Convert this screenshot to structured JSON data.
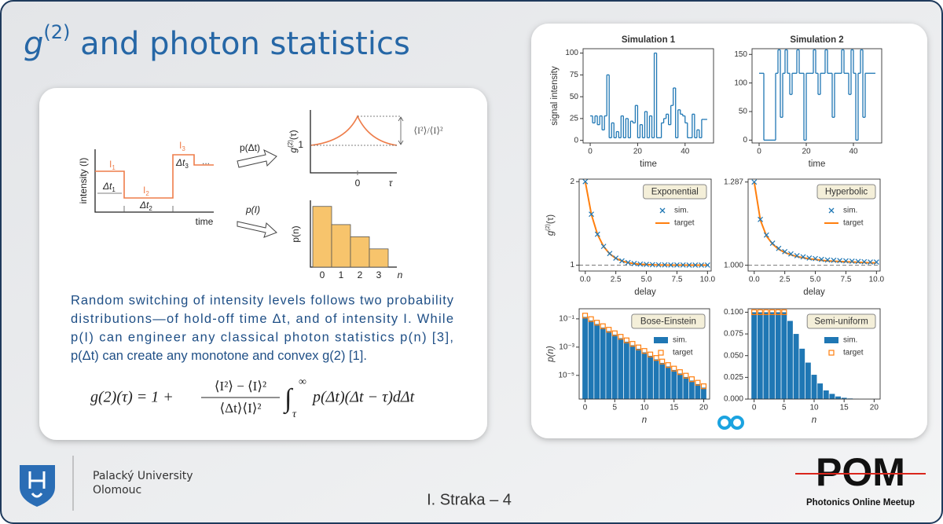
{
  "title": {
    "base": "g",
    "sup": "(2)",
    "rest": " and photon statistics"
  },
  "diagram": {
    "intensity_axis": "intensity (I)",
    "time_axis": "time",
    "levels": [
      {
        "base": "I",
        "sub": "1"
      },
      {
        "base": "I",
        "sub": "2"
      },
      {
        "base": "I",
        "sub": "3"
      }
    ],
    "holdoffs": [
      {
        "base": "Δt",
        "sub": "1"
      },
      {
        "base": "Δt",
        "sub": "2"
      },
      {
        "base": "Δt",
        "sub": "3"
      }
    ],
    "ellipsis": "...",
    "arrow_top": "p(Δt)",
    "arrow_bottom": "p(I)",
    "g2_axis": {
      "base": "g",
      "sup": "(2)",
      "rest": "(τ)"
    },
    "g2_one": "1",
    "g2_zero": "0",
    "g2_tau": "τ",
    "g2_ratio": "⟨I²⟩/⟨I⟩²",
    "pn": {
      "ylabel": "p(n)",
      "categories": [
        "0",
        "1",
        "2",
        "3"
      ],
      "values": [
        1,
        0.7,
        0.5,
        0.3
      ],
      "ylim": [
        0,
        1.1
      ],
      "xlabel": "n"
    }
  },
  "text": {
    "lines": [
      "Random switching of intensity levels follows two probability",
      "distributions—of hold-off time Δt, and of intensity I. While",
      "p(I) can engineer any classical photon statistics p(n) [3],",
      "p(Δt) can create any monotone and convex g(2) [1]."
    ]
  },
  "formula": {
    "lhs": "g(2)(τ) = 1 +",
    "numerator": "⟨I²⟩ − ⟨I⟩²",
    "denominator": "⟨Δt⟩⟨I⟩²",
    "integral": "∫",
    "lower": "τ",
    "upper": "∞",
    "integrand": "p(Δt)(Δt − τ)dΔt"
  },
  "footer": {
    "university": "Palacký University",
    "city": "Olomouc",
    "author": "I. Straka – 4",
    "logo": "POM",
    "logo_sub": "Photonics Online Meetup"
  },
  "chart_data": [
    {
      "type": "line",
      "title": "Simulation 1",
      "ylabel": "signal intensity",
      "xlabel": "time",
      "step": true,
      "xlim": [
        -3,
        52
      ],
      "xticks": [
        0,
        20,
        40
      ],
      "ylim": [
        -3,
        105
      ],
      "yticks": [
        0,
        25,
        50,
        75,
        100
      ],
      "x": [
        0,
        1,
        2,
        3,
        4,
        5,
        6,
        7,
        8,
        9,
        10,
        11,
        12,
        13,
        14,
        15,
        16,
        17,
        18,
        19,
        20,
        21,
        22,
        23,
        24,
        25,
        26,
        27,
        28,
        29,
        30,
        31,
        32,
        33,
        34,
        35,
        36,
        37,
        38,
        39,
        40,
        41,
        42,
        43,
        44,
        45,
        46,
        47,
        48,
        49
      ],
      "series": [
        {
          "name": "signal",
          "color": "#1f77b4",
          "style": "step",
          "values": [
            28,
            20,
            28,
            18,
            28,
            12,
            28,
            75,
            3,
            20,
            3,
            10,
            3,
            28,
            3,
            25,
            3,
            22,
            20,
            40,
            3,
            18,
            3,
            33,
            3,
            28,
            3,
            100,
            3,
            3,
            20,
            25,
            30,
            18,
            40,
            60,
            3,
            35,
            30,
            28,
            20,
            3,
            3,
            30,
            3,
            12,
            3,
            24,
            24,
            24
          ]
        }
      ]
    },
    {
      "type": "line",
      "title": "Simulation 2",
      "xlabel": "time",
      "step": true,
      "xlim": [
        -3,
        52
      ],
      "xticks": [
        0,
        20,
        40
      ],
      "ylim": [
        -5,
        160
      ],
      "yticks": [
        0,
        50,
        100,
        150
      ],
      "x": [
        0,
        1,
        2,
        3,
        4,
        5,
        6,
        7,
        8,
        9,
        10,
        11,
        12,
        13,
        14,
        15,
        16,
        17,
        18,
        19,
        20,
        21,
        22,
        23,
        24,
        25,
        26,
        27,
        28,
        29,
        30,
        31,
        32,
        33,
        34,
        35,
        36,
        37,
        38,
        39,
        40,
        41,
        42,
        43,
        44,
        45,
        46,
        47,
        48,
        49
      ],
      "series": [
        {
          "name": "signal",
          "color": "#1f77b4",
          "style": "step",
          "values": [
            117,
            117,
            0,
            0,
            0,
            0,
            0,
            117,
            158,
            40,
            117,
            158,
            117,
            80,
            117,
            117,
            158,
            117,
            117,
            0,
            117,
            117,
            117,
            158,
            117,
            80,
            117,
            117,
            158,
            117,
            117,
            40,
            117,
            117,
            117,
            158,
            117,
            117,
            80,
            158,
            117,
            0,
            117,
            158,
            40,
            117,
            117,
            117,
            117,
            117
          ]
        }
      ]
    },
    {
      "type": "line",
      "annotation": "Exponential",
      "ylabel": {
        "base": "g",
        "sup": "(2)",
        "rest": "(τ)"
      },
      "xlabel": "delay",
      "legend": true,
      "baseline": 1,
      "xlim": [
        -0.5,
        10.3
      ],
      "xticks": [
        {
          "value": 0,
          "label": "0.0"
        },
        {
          "value": 2.5,
          "label": "2.5"
        },
        {
          "value": 5,
          "label": "5.0"
        },
        {
          "value": 7.5,
          "label": "7.5"
        },
        {
          "value": 10,
          "label": "10.0"
        }
      ],
      "ylim": [
        0.93,
        2.03
      ],
      "yticks": [
        1,
        2
      ],
      "x": [
        0,
        0.5,
        1,
        1.5,
        2,
        2.5,
        3,
        3.5,
        4,
        4.5,
        5,
        5.5,
        6,
        6.5,
        7,
        7.5,
        8,
        8.5,
        9,
        9.5,
        10
      ],
      "series": [
        {
          "name": "target",
          "color": "#ff7f0e",
          "style": "line",
          "values": [
            2,
            1.607,
            1.368,
            1.223,
            1.135,
            1.082,
            1.05,
            1.03,
            1.018,
            1.011,
            1.007,
            1.004,
            1.002,
            1.002,
            1.001,
            1.001,
            1,
            1,
            1,
            1,
            1
          ]
        },
        {
          "name": "sim.",
          "color": "#1f77b4",
          "style": "x",
          "values": [
            2,
            1.61,
            1.37,
            1.225,
            1.14,
            1.085,
            1.052,
            1.032,
            1.02,
            1.013,
            1.009,
            1.006,
            1.004,
            1.003,
            1.002,
            1.002,
            1.002,
            1.001,
            1.001,
            1.001,
            1.001
          ]
        }
      ]
    },
    {
      "type": "line",
      "annotation": "Hyperbolic",
      "xlabel": "delay",
      "legend": true,
      "baseline": 1,
      "xlim": [
        -0.5,
        10.3
      ],
      "xticks": [
        {
          "value": 0,
          "label": "0.0"
        },
        {
          "value": 2.5,
          "label": "2.5"
        },
        {
          "value": 5,
          "label": "5.0"
        },
        {
          "value": 7.5,
          "label": "7.5"
        },
        {
          "value": 10,
          "label": "10.0"
        }
      ],
      "ylim": [
        0.98,
        1.297
      ],
      "yticks": [
        {
          "value": 1,
          "label": "1.000"
        },
        1.287
      ],
      "x": [
        0,
        0.5,
        1,
        1.5,
        2,
        2.5,
        3,
        3.5,
        4,
        4.5,
        5,
        5.5,
        6,
        6.5,
        7,
        7.5,
        8,
        8.5,
        9,
        9.5,
        10
      ],
      "series": [
        {
          "name": "target",
          "color": "#ff7f0e",
          "style": "line",
          "values": [
            1.287,
            1.156,
            1.101,
            1.073,
            1.055,
            1.044,
            1.036,
            1.03,
            1.026,
            1.022,
            1.02,
            1.017,
            1.015,
            1.014,
            1.013,
            1.012,
            1.011,
            1.01,
            1.009,
            1.008,
            1.008
          ]
        },
        {
          "name": "sim.",
          "color": "#1f77b4",
          "style": "x",
          "values": [
            1.287,
            1.158,
            1.104,
            1.076,
            1.058,
            1.047,
            1.039,
            1.033,
            1.029,
            1.025,
            1.023,
            1.02,
            1.018,
            1.017,
            1.016,
            1.015,
            1.014,
            1.013,
            1.012,
            1.011,
            1.011
          ]
        }
      ]
    },
    {
      "type": "bar",
      "annotation": "Bose-Einstein",
      "ylabel": "p(n)",
      "xlabel": "n",
      "xlabel_style": "italic",
      "legend": true,
      "log_y": true,
      "xlim": [
        -1,
        21
      ],
      "xticks": [
        0,
        5,
        10,
        15,
        20
      ],
      "ylim": [
        2.1e-07,
        0.52
      ],
      "yticks": [
        {
          "value": 0.1,
          "label": "10⁻¹"
        },
        {
          "value": 0.001,
          "label": "10⁻³"
        },
        {
          "value": 1e-05,
          "label": "10⁻⁵"
        }
      ],
      "x": [
        0,
        1,
        2,
        3,
        4,
        5,
        6,
        7,
        8,
        9,
        10,
        11,
        12,
        13,
        14,
        15,
        16,
        17,
        18,
        19,
        20
      ],
      "series": [
        {
          "name": "sim.",
          "color": "#1f77b4",
          "style": "bar",
          "values": [
            0.136,
            0.0764,
            0.043,
            0.0242,
            0.0136,
            0.00764,
            0.0043,
            0.00242,
            0.00136,
            0.000764,
            0.00043,
            0.000242,
            0.000136,
            7.64e-05,
            4.3e-05,
            2.42e-05,
            1.36e-05,
            7.64e-06,
            4.3e-06,
            2.42e-06,
            1.36e-06
          ]
        },
        {
          "name": "target",
          "color": "#ff7f0e",
          "style": "square",
          "values": [
            0.17,
            0.0955,
            0.0537,
            0.0302,
            0.017,
            0.00955,
            0.00537,
            0.00302,
            0.0017,
            0.000955,
            0.000537,
            0.000302,
            0.00017,
            9.55e-05,
            5.37e-05,
            3.02e-05,
            1.7e-05,
            9.55e-06,
            5.37e-06,
            3.02e-06,
            1.7e-06
          ]
        }
      ]
    },
    {
      "type": "bar",
      "annotation": "Semi-uniform",
      "xlabel": "n",
      "xlabel_style": "italic",
      "legend": true,
      "xlim": [
        -1,
        21
      ],
      "xticks": [
        0,
        5,
        10,
        15,
        20
      ],
      "ylim": [
        0,
        0.104
      ],
      "yticks": [
        {
          "value": 0,
          "label": "0.000"
        },
        {
          "value": 0.025,
          "label": "0.025"
        },
        {
          "value": 0.05,
          "label": "0.050"
        },
        {
          "value": 0.075,
          "label": "0.075"
        },
        {
          "value": 0.1,
          "label": "0.100"
        }
      ],
      "x": [
        0,
        1,
        2,
        3,
        4,
        5,
        6,
        7,
        8,
        9,
        10,
        11,
        12,
        13,
        14,
        15,
        16,
        17,
        18,
        19,
        20
      ],
      "series": [
        {
          "name": "sim.",
          "color": "#1f77b4",
          "style": "bar",
          "values": [
            0.1,
            0.1,
            0.1,
            0.1,
            0.1,
            0.1,
            0.09,
            0.075,
            0.058,
            0.042,
            0.028,
            0.018,
            0.01,
            0.006,
            0.003,
            0.0015,
            0.0007,
            0.0003,
            0.0001,
            0.0001,
            0.0001
          ]
        },
        {
          "name": "target",
          "color": "#ff7f0e",
          "style": "square",
          "values": [
            0.1,
            0.1,
            0.1,
            0.1,
            0.1,
            0.1,
            null,
            null,
            null,
            null,
            null,
            null,
            null,
            null,
            null,
            null,
            null,
            null,
            null,
            null,
            null
          ]
        }
      ]
    }
  ]
}
